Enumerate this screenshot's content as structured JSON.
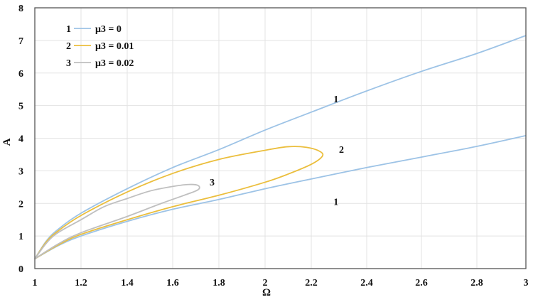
{
  "chart_data": {
    "type": "line",
    "title": "",
    "xlabel": "Ω",
    "ylabel": "A",
    "xlim": [
      1,
      3
    ],
    "ylim": [
      0,
      8
    ],
    "x_ticks": [
      "1",
      "1.2",
      "1.4",
      "1.6",
      "1.8",
      "2",
      "2.2",
      "2.4",
      "2.6",
      "2.8",
      "3"
    ],
    "y_ticks": [
      "0",
      "1",
      "2",
      "3",
      "4",
      "5",
      "6",
      "7",
      "8"
    ],
    "grid": true,
    "legend_position": "top-left",
    "series": [
      {
        "name": "μ3 = 0",
        "id": "1",
        "color": "#9DC3E6",
        "branches": [
          [
            [
              1,
              0.3
            ],
            [
              1.05,
              0.85
            ],
            [
              1.1,
              1.2
            ],
            [
              1.2,
              1.7
            ],
            [
              1.4,
              2.45
            ],
            [
              1.6,
              3.1
            ],
            [
              1.8,
              3.65
            ],
            [
              2,
              4.25
            ],
            [
              2.2,
              4.8
            ],
            [
              2.4,
              5.45
            ],
            [
              2.6,
              6.05
            ],
            [
              2.8,
              6.6
            ],
            [
              3,
              7.15
            ]
          ],
          [
            [
              1,
              0.3
            ],
            [
              1.1,
              0.7
            ],
            [
              1.2,
              1.0
            ],
            [
              1.4,
              1.45
            ],
            [
              1.6,
              1.82
            ],
            [
              1.8,
              2.12
            ],
            [
              2,
              2.45
            ],
            [
              2.2,
              2.75
            ],
            [
              2.4,
              3.1
            ],
            [
              2.6,
              3.42
            ],
            [
              2.8,
              3.75
            ],
            [
              3,
              4.08
            ]
          ]
        ]
      },
      {
        "name": "μ3 = 0.01",
        "id": "2",
        "color": "#EBBE3C",
        "branches": [
          [
            [
              1,
              0.3
            ],
            [
              1.05,
              0.82
            ],
            [
              1.1,
              1.15
            ],
            [
              1.2,
              1.63
            ],
            [
              1.4,
              2.35
            ],
            [
              1.6,
              2.92
            ],
            [
              1.8,
              3.35
            ],
            [
              2,
              3.63
            ],
            [
              2.1,
              3.74
            ],
            [
              2.18,
              3.72
            ],
            [
              2.23,
              3.6
            ],
            [
              2.24,
              3.45
            ],
            [
              2.2,
              3.2
            ],
            [
              2.1,
              2.9
            ],
            [
              2,
              2.65
            ],
            [
              1.8,
              2.25
            ],
            [
              1.6,
              1.9
            ],
            [
              1.4,
              1.5
            ],
            [
              1.2,
              1.05
            ],
            [
              1.1,
              0.72
            ],
            [
              1,
              0.3
            ]
          ]
        ]
      },
      {
        "name": "μ3 = 0.02",
        "id": "3",
        "color": "#BFBFBF",
        "branches": [
          [
            [
              1,
              0.3
            ],
            [
              1.05,
              0.78
            ],
            [
              1.1,
              1.1
            ],
            [
              1.2,
              1.5
            ],
            [
              1.3,
              1.9
            ],
            [
              1.4,
              2.15
            ],
            [
              1.5,
              2.38
            ],
            [
              1.6,
              2.52
            ],
            [
              1.67,
              2.58
            ],
            [
              1.71,
              2.55
            ],
            [
              1.71,
              2.42
            ],
            [
              1.65,
              2.25
            ],
            [
              1.55,
              2.0
            ],
            [
              1.4,
              1.6
            ],
            [
              1.2,
              1.1
            ],
            [
              1.1,
              0.75
            ],
            [
              1,
              0.3
            ]
          ]
        ]
      }
    ],
    "annotations": [
      {
        "text": "1",
        "x": 2.28,
        "y": 5.1
      },
      {
        "text": "1",
        "x": 2.28,
        "y": 1.95
      },
      {
        "text": "2",
        "x": 2.3,
        "y": 3.55
      },
      {
        "text": "3",
        "x": 1.76,
        "y": 2.55
      }
    ]
  }
}
